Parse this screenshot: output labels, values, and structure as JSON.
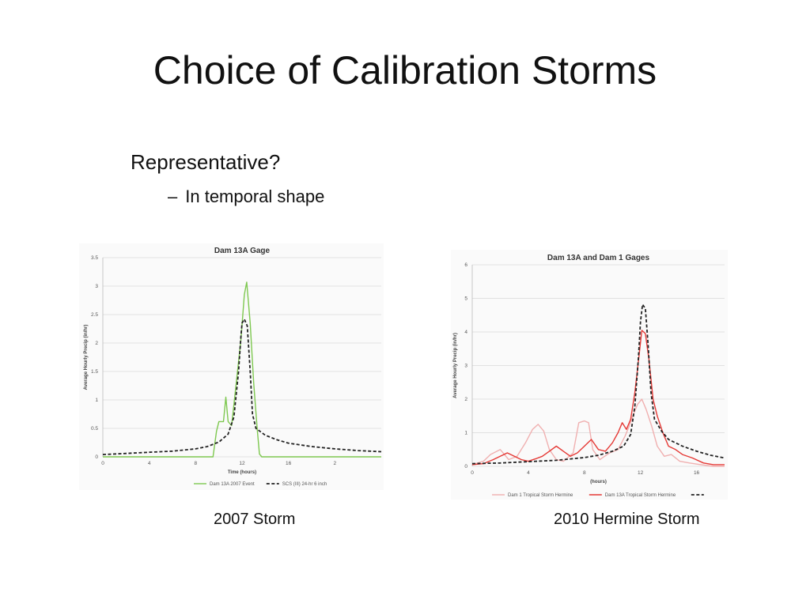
{
  "slide": {
    "title": "Choice of Calibration Storms",
    "bullet": "Representative?",
    "sub_bullet_dash": "–",
    "sub_bullet": "In temporal shape"
  },
  "captions": {
    "left": "2007 Storm",
    "right": "2010 Hermine Storm"
  },
  "chart_data": [
    {
      "type": "line",
      "title": "Dam 13A Gage",
      "xlabel": "Time (hours)",
      "ylabel": "Average Hourly Precip (in/hr)",
      "xlim": [
        0,
        24
      ],
      "ylim": [
        0,
        3.5
      ],
      "xticks": [
        "0",
        "4",
        "8",
        "12",
        "16",
        "2"
      ],
      "yticks": [
        "0",
        "0.5",
        "1",
        "1.5",
        "2",
        "2.5",
        "3",
        "3.5"
      ],
      "grid": true,
      "legend_position": "bottom",
      "series": [
        {
          "name": "Dam 13A 2007 Event",
          "color": "#7ec850",
          "style": "solid",
          "points": [
            [
              0,
              0
            ],
            [
              9.5,
              0
            ],
            [
              9.8,
              0.45
            ],
            [
              10,
              0.62
            ],
            [
              10.4,
              0.62
            ],
            [
              10.6,
              1.05
            ],
            [
              10.8,
              0.62
            ],
            [
              11.1,
              0.55
            ],
            [
              11.5,
              1.3
            ],
            [
              11.9,
              2.05
            ],
            [
              12.2,
              2.85
            ],
            [
              12.4,
              3.07
            ],
            [
              12.7,
              2.35
            ],
            [
              13,
              1.3
            ],
            [
              13.3,
              0.5
            ],
            [
              13.5,
              0.05
            ],
            [
              13.7,
              0
            ],
            [
              24,
              0
            ]
          ]
        },
        {
          "name": "SCS (III) 24-hr 6 inch",
          "color": "#222222",
          "style": "dashed",
          "points": [
            [
              0,
              0.04
            ],
            [
              2,
              0.06
            ],
            [
              4,
              0.08
            ],
            [
              6,
              0.1
            ],
            [
              8,
              0.14
            ],
            [
              9,
              0.18
            ],
            [
              10,
              0.26
            ],
            [
              10.8,
              0.4
            ],
            [
              11.3,
              0.7
            ],
            [
              11.7,
              1.5
            ],
            [
              11.9,
              2.1
            ],
            [
              12,
              2.35
            ],
            [
              12.2,
              2.42
            ],
            [
              12.45,
              2.3
            ],
            [
              12.7,
              1.5
            ],
            [
              12.9,
              0.75
            ],
            [
              13.2,
              0.5
            ],
            [
              14,
              0.38
            ],
            [
              15,
              0.3
            ],
            [
              16,
              0.24
            ],
            [
              18,
              0.18
            ],
            [
              20,
              0.14
            ],
            [
              22,
              0.11
            ],
            [
              24,
              0.09
            ]
          ]
        }
      ]
    },
    {
      "type": "line",
      "title": "Dam 13A and Dam 1 Gages",
      "xlabel": "(hours)",
      "ylabel": "Average Hourly Precip (in/hr)",
      "xlim": [
        0,
        18
      ],
      "ylim": [
        0,
        6
      ],
      "xticks": [
        "0",
        "4",
        "8",
        "12",
        "16"
      ],
      "yticks": [
        "0",
        "1",
        "2",
        "3",
        "4",
        "5",
        "6"
      ],
      "grid": true,
      "legend_position": "bottom",
      "series": [
        {
          "name": "Dam 1 Tropical Storm Hermine",
          "color": "#f0b0b0",
          "style": "solid",
          "points": [
            [
              0,
              0.05
            ],
            [
              0.8,
              0.15
            ],
            [
              1.3,
              0.35
            ],
            [
              2,
              0.5
            ],
            [
              2.6,
              0.2
            ],
            [
              3.2,
              0.3
            ],
            [
              3.8,
              0.7
            ],
            [
              4.3,
              1.1
            ],
            [
              4.7,
              1.25
            ],
            [
              5.1,
              1.05
            ],
            [
              5.5,
              0.5
            ],
            [
              6,
              0.2
            ],
            [
              6.5,
              0.15
            ],
            [
              7.2,
              0.4
            ],
            [
              7.6,
              1.3
            ],
            [
              8,
              1.35
            ],
            [
              8.3,
              1.3
            ],
            [
              8.6,
              0.5
            ],
            [
              9.1,
              0.2
            ],
            [
              9.8,
              0.4
            ],
            [
              10.4,
              0.5
            ],
            [
              10.9,
              0.9
            ],
            [
              11.2,
              1.2
            ],
            [
              11.5,
              1.55
            ],
            [
              11.8,
              1.85
            ],
            [
              12.1,
              2.0
            ],
            [
              12.4,
              1.7
            ],
            [
              12.8,
              1.2
            ],
            [
              13.2,
              0.6
            ],
            [
              13.7,
              0.3
            ],
            [
              14.2,
              0.35
            ],
            [
              14.8,
              0.15
            ],
            [
              15.5,
              0.1
            ],
            [
              16.3,
              0.05
            ],
            [
              17.2,
              0.0
            ],
            [
              18,
              0.0
            ]
          ]
        },
        {
          "name": "Dam 13A Tropical Storm Hermine",
          "color": "#e53935",
          "style": "solid",
          "points": [
            [
              0,
              0.05
            ],
            [
              0.8,
              0.08
            ],
            [
              1.5,
              0.2
            ],
            [
              2,
              0.3
            ],
            [
              2.5,
              0.4
            ],
            [
              3,
              0.3
            ],
            [
              3.5,
              0.2
            ],
            [
              4,
              0.15
            ],
            [
              4.5,
              0.22
            ],
            [
              5,
              0.3
            ],
            [
              5.5,
              0.45
            ],
            [
              6,
              0.6
            ],
            [
              6.5,
              0.45
            ],
            [
              7,
              0.3
            ],
            [
              7.5,
              0.4
            ],
            [
              8,
              0.6
            ],
            [
              8.5,
              0.8
            ],
            [
              9,
              0.5
            ],
            [
              9.5,
              0.45
            ],
            [
              10,
              0.7
            ],
            [
              10.4,
              1.0
            ],
            [
              10.7,
              1.3
            ],
            [
              11,
              1.1
            ],
            [
              11.3,
              1.4
            ],
            [
              11.6,
              2.2
            ],
            [
              11.9,
              3.3
            ],
            [
              12.1,
              4.05
            ],
            [
              12.35,
              3.95
            ],
            [
              12.6,
              3.2
            ],
            [
              12.9,
              2.0
            ],
            [
              13.2,
              1.5
            ],
            [
              13.6,
              1.0
            ],
            [
              14,
              0.6
            ],
            [
              14.5,
              0.5
            ],
            [
              15,
              0.35
            ],
            [
              15.7,
              0.25
            ],
            [
              16.5,
              0.1
            ],
            [
              17.2,
              0.05
            ],
            [
              18,
              0.05
            ]
          ]
        },
        {
          "name": "",
          "color": "#222222",
          "style": "dashed",
          "points": [
            [
              0,
              0.08
            ],
            [
              2,
              0.1
            ],
            [
              4,
              0.14
            ],
            [
              6,
              0.18
            ],
            [
              8,
              0.26
            ],
            [
              9,
              0.33
            ],
            [
              10,
              0.45
            ],
            [
              10.8,
              0.6
            ],
            [
              11.3,
              0.95
            ],
            [
              11.6,
              1.8
            ],
            [
              11.85,
              3.2
            ],
            [
              12,
              4.3
            ],
            [
              12.15,
              4.82
            ],
            [
              12.35,
              4.7
            ],
            [
              12.55,
              3.6
            ],
            [
              12.75,
              2.2
            ],
            [
              13,
              1.4
            ],
            [
              13.5,
              1.05
            ],
            [
              14,
              0.8
            ],
            [
              15,
              0.6
            ],
            [
              16,
              0.45
            ],
            [
              17,
              0.33
            ],
            [
              18,
              0.25
            ]
          ]
        }
      ]
    }
  ]
}
